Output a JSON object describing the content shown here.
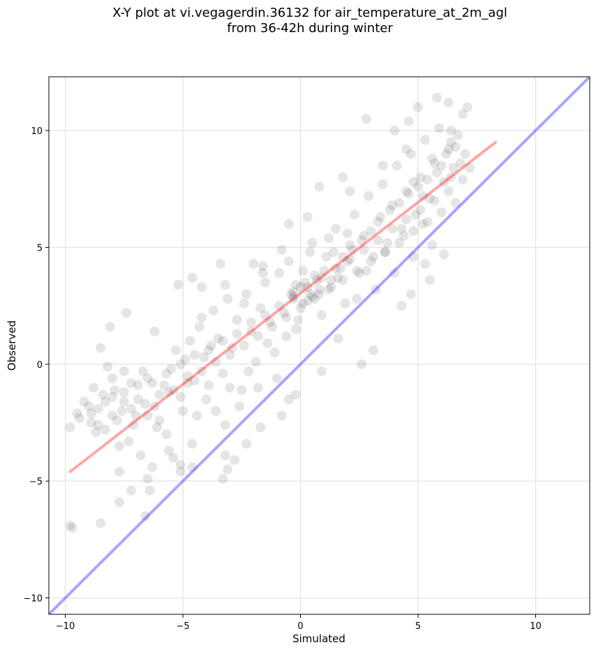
{
  "title_line1": "X-Y plot at vi.vegagerdin.36132 for air_temperature_at_2m_agl",
  "title_line2": "from 36-42h during winter",
  "chart_data": {
    "type": "scatter",
    "title": "X-Y plot at vi.vegagerdin.36132 for air_temperature_at_2m_agl\nfrom 36-42h during winter",
    "xlabel": "Simulated",
    "ylabel": "Observed",
    "xlim": [
      -10.7,
      12.3
    ],
    "ylim": [
      -10.7,
      12.3
    ],
    "xticks": [
      -10,
      -5,
      0,
      5,
      10
    ],
    "yticks": [
      -10,
      -5,
      0,
      5,
      10
    ],
    "xtick_labels": [
      "−10",
      "−5",
      "0",
      "5",
      "10"
    ],
    "ytick_labels": [
      "−10",
      "−5",
      "0",
      "5",
      "10"
    ],
    "grid": true,
    "point_color": "#000000",
    "point_opacity": 0.1,
    "regression_line": {
      "color": "#ff0000",
      "x": [
        -9.8,
        8.3
      ],
      "y": [
        -4.6,
        9.5
      ]
    },
    "identity_line": {
      "color": "#0000ff",
      "x": [
        -10.7,
        12.3
      ],
      "y": [
        -10.7,
        12.3
      ]
    },
    "points_note_count": 1500,
    "points": [
      [
        -9.8,
        -6.9
      ],
      [
        -9.7,
        -7.0
      ],
      [
        -8.5,
        -6.8
      ],
      [
        -6.6,
        -6.5
      ],
      [
        -7.7,
        -5.9
      ],
      [
        -7.2,
        -5.4
      ],
      [
        -6.4,
        -5.4
      ],
      [
        -7.7,
        -4.6
      ],
      [
        -6.5,
        -4.9
      ],
      [
        -5.1,
        -4.6
      ],
      [
        -3.3,
        -4.9
      ],
      [
        -3.1,
        -4.5
      ],
      [
        -9.8,
        -2.7
      ],
      [
        -9.4,
        -2.3
      ],
      [
        -9.0,
        -1.8
      ],
      [
        -8.6,
        -2.6
      ],
      [
        -8.4,
        -1.3
      ],
      [
        -8.0,
        -2.2
      ],
      [
        -8.1,
        1.6
      ],
      [
        -8.5,
        0.7
      ],
      [
        -8.2,
        -0.1
      ],
      [
        -7.5,
        -0.3
      ],
      [
        -6.2,
        1.4
      ],
      [
        -7.4,
        2.2
      ],
      [
        -5.2,
        3.4
      ],
      [
        -4.6,
        3.7
      ],
      [
        -4.2,
        3.3
      ],
      [
        -3.4,
        4.3
      ],
      [
        -2.0,
        4.3
      ],
      [
        -1.6,
        3.9
      ],
      [
        0.8,
        7.6
      ],
      [
        -0.5,
        6.0
      ],
      [
        0.3,
        6.3
      ],
      [
        2.8,
        10.5
      ],
      [
        4.0,
        10.0
      ],
      [
        4.6,
        10.4
      ],
      [
        5.8,
        11.4
      ],
      [
        6.3,
        11.2
      ],
      [
        7.1,
        11.0
      ],
      [
        5.0,
        11.0
      ],
      [
        4.5,
        9.2
      ],
      [
        6.9,
        10.7
      ],
      [
        6.4,
        9.5
      ],
      [
        3.5,
        8.5
      ],
      [
        2.1,
        7.4
      ],
      [
        1.8,
        8.0
      ],
      [
        -0.3,
        2.8
      ],
      [
        -0.2,
        1.5
      ],
      [
        1.6,
        1.1
      ],
      [
        2.6,
        0.0
      ],
      [
        3.1,
        0.6
      ],
      [
        4.3,
        2.5
      ],
      [
        4.7,
        3.0
      ],
      [
        5.5,
        3.6
      ],
      [
        6.1,
        4.7
      ],
      [
        5.3,
        4.3
      ],
      [
        0.9,
        -0.3
      ],
      [
        -0.5,
        -1.5
      ],
      [
        -0.8,
        -2.2
      ],
      [
        -0.2,
        -1.3
      ],
      [
        -1.7,
        -2.7
      ],
      [
        -2.3,
        -3.4
      ],
      [
        -3.2,
        -2.6
      ],
      [
        -3.2,
        -3.9
      ],
      [
        -2.8,
        -4.1
      ],
      [
        -4.6,
        -3.4
      ],
      [
        -4.6,
        -4.4
      ],
      [
        -5.1,
        -4.3
      ],
      [
        -5.4,
        -4.0
      ],
      [
        -5.7,
        -3.0
      ],
      [
        -6.1,
        -2.7
      ],
      [
        -6.5,
        -2.2
      ],
      [
        -7.1,
        -2.6
      ],
      [
        -7.3,
        -3.3
      ],
      [
        -7.7,
        -3.5
      ],
      [
        -6.8,
        -3.9
      ],
      [
        -6.3,
        -4.4
      ],
      [
        -5.6,
        -3.7
      ],
      [
        -8.8,
        -1.0
      ],
      [
        -8.9,
        -2.1
      ],
      [
        -8.3,
        -1.6
      ],
      [
        -7.9,
        -1.1
      ],
      [
        -7.6,
        -2.0
      ],
      [
        -7.2,
        -0.8
      ],
      [
        -6.9,
        -1.5
      ],
      [
        -6.5,
        -0.6
      ],
      [
        -6.2,
        -1.8
      ],
      [
        -5.8,
        -0.9
      ],
      [
        -5.5,
        -0.2
      ],
      [
        -5.3,
        0.6
      ],
      [
        -5.1,
        -1.4
      ],
      [
        -4.9,
        0.2
      ],
      [
        -4.7,
        1.0
      ],
      [
        -4.5,
        -0.7
      ],
      [
        -4.3,
        1.6
      ],
      [
        -4.1,
        0.3
      ],
      [
        -3.9,
        -0.9
      ],
      [
        -3.7,
        2.3
      ],
      [
        -3.5,
        1.1
      ],
      [
        -3.3,
        -0.4
      ],
      [
        -3.1,
        2.8
      ],
      [
        -2.9,
        0.7
      ],
      [
        -2.7,
        1.9
      ],
      [
        -2.5,
        -1.1
      ],
      [
        -2.3,
        3.0
      ],
      [
        -2.1,
        1.4
      ],
      [
        -1.9,
        0.1
      ],
      [
        -1.7,
        2.4
      ],
      [
        -1.5,
        3.5
      ],
      [
        -1.3,
        1.8
      ],
      [
        -1.1,
        0.5
      ],
      [
        -0.9,
        3.9
      ],
      [
        -0.7,
        2.2
      ],
      [
        -0.5,
        4.4
      ],
      [
        -0.3,
        3.1
      ],
      [
        -0.1,
        1.9
      ],
      [
        0.1,
        4.0
      ],
      [
        0.3,
        2.7
      ],
      [
        0.5,
        5.2
      ],
      [
        0.7,
        3.6
      ],
      [
        0.9,
        2.1
      ],
      [
        1.1,
        4.6
      ],
      [
        1.3,
        3.3
      ],
      [
        1.5,
        5.8
      ],
      [
        1.7,
        4.1
      ],
      [
        1.9,
        2.6
      ],
      [
        2.1,
        5.1
      ],
      [
        2.3,
        6.4
      ],
      [
        2.5,
        3.9
      ],
      [
        2.7,
        5.5
      ],
      [
        2.9,
        7.2
      ],
      [
        3.1,
        4.6
      ],
      [
        3.3,
        6.1
      ],
      [
        3.5,
        7.7
      ],
      [
        3.7,
        5.2
      ],
      [
        3.9,
        6.8
      ],
      [
        4.1,
        8.5
      ],
      [
        4.3,
        5.8
      ],
      [
        4.5,
        7.4
      ],
      [
        4.7,
        9.0
      ],
      [
        4.9,
        6.4
      ],
      [
        5.1,
        8.0
      ],
      [
        5.3,
        9.6
      ],
      [
        5.5,
        7.1
      ],
      [
        5.7,
        8.6
      ],
      [
        5.9,
        10.1
      ],
      [
        6.1,
        7.8
      ],
      [
        6.3,
        9.2
      ],
      [
        6.5,
        8.4
      ],
      [
        6.7,
        9.8
      ],
      [
        -8.7,
        -2.9
      ],
      [
        -8.0,
        -0.6
      ],
      [
        -7.5,
        -1.6
      ],
      [
        -7.0,
        -2.2
      ],
      [
        -6.7,
        -0.3
      ],
      [
        -6.0,
        -2.4
      ],
      [
        -5.6,
        -1.2
      ],
      [
        -5.0,
        -2.0
      ],
      [
        -4.8,
        -0.5
      ],
      [
        -4.4,
        -2.2
      ],
      [
        -4.0,
        -1.5
      ],
      [
        -3.6,
        -2.0
      ],
      [
        -3.8,
        0.8
      ],
      [
        -3.0,
        -1.0
      ],
      [
        -2.6,
        -1.8
      ],
      [
        -2.2,
        -0.3
      ],
      [
        -1.8,
        -1.0
      ],
      [
        -1.4,
        0.9
      ],
      [
        -1.0,
        -0.6
      ],
      [
        -0.6,
        1.2
      ],
      [
        -4.2,
        2.0
      ],
      [
        -3.2,
        3.4
      ],
      [
        -2.4,
        2.6
      ],
      [
        -1.6,
        4.2
      ],
      [
        -0.8,
        4.9
      ],
      [
        0.0,
        3.3
      ],
      [
        0.4,
        4.8
      ],
      [
        0.8,
        3.0
      ],
      [
        1.2,
        5.4
      ],
      [
        1.6,
        3.7
      ],
      [
        2.0,
        4.4
      ],
      [
        2.4,
        2.8
      ],
      [
        2.8,
        4.0
      ],
      [
        3.2,
        3.2
      ],
      [
        3.6,
        4.8
      ],
      [
        4.0,
        3.9
      ],
      [
        4.4,
        5.5
      ],
      [
        4.8,
        4.6
      ],
      [
        5.2,
        6.0
      ],
      [
        5.6,
        5.1
      ],
      [
        0.2,
        3.5
      ],
      [
        0.4,
        3.0
      ],
      [
        0.6,
        3.8
      ],
      [
        0.8,
        3.2
      ],
      [
        1.0,
        4.0
      ],
      [
        -0.2,
        3.4
      ],
      [
        -0.4,
        3.0
      ],
      [
        0.1,
        2.6
      ],
      [
        0.5,
        2.9
      ],
      [
        1.3,
        3.6
      ],
      [
        1.8,
        4.6
      ],
      [
        2.2,
        4.9
      ],
      [
        2.6,
        5.3
      ],
      [
        2.0,
        5.6
      ],
      [
        1.4,
        4.8
      ],
      [
        3.0,
        5.7
      ],
      [
        3.4,
        6.3
      ],
      [
        3.8,
        6.6
      ],
      [
        4.2,
        6.9
      ],
      [
        4.6,
        7.3
      ],
      [
        5.0,
        7.6
      ],
      [
        5.4,
        7.9
      ],
      [
        4.8,
        7.8
      ],
      [
        5.2,
        7.2
      ],
      [
        5.8,
        8.2
      ],
      [
        5.6,
        8.8
      ],
      [
        6.0,
        8.5
      ],
      [
        6.4,
        8.0
      ],
      [
        6.2,
        9.0
      ],
      [
        6.6,
        9.3
      ],
      [
        -9.5,
        -2.1
      ],
      [
        -9.2,
        -1.6
      ],
      [
        -8.9,
        -2.5
      ],
      [
        -8.6,
        -1.9
      ],
      [
        -8.3,
        -2.8
      ],
      [
        -8.0,
        -1.4
      ],
      [
        -7.8,
        -2.4
      ],
      [
        -7.5,
        -1.2
      ],
      [
        -7.2,
        -1.9
      ],
      [
        -6.9,
        -0.9
      ],
      [
        -6.6,
        -1.7
      ],
      [
        -6.3,
        -0.8
      ],
      [
        -6.0,
        -1.3
      ],
      [
        -5.7,
        -0.4
      ],
      [
        -5.4,
        -1.1
      ],
      [
        -5.1,
        0.0
      ],
      [
        -4.8,
        -0.8
      ],
      [
        -4.5,
        0.4
      ],
      [
        -4.2,
        -0.3
      ],
      [
        -3.9,
        0.6
      ],
      [
        -3.6,
        0.1
      ],
      [
        -3.3,
        1.0
      ],
      [
        -3.0,
        0.4
      ],
      [
        -2.7,
        1.3
      ],
      [
        -2.4,
        0.8
      ],
      [
        -2.1,
        1.8
      ],
      [
        -1.8,
        1.2
      ],
      [
        -1.5,
        2.1
      ],
      [
        -1.2,
        1.6
      ],
      [
        -0.9,
        2.5
      ],
      [
        -0.6,
        2.0
      ],
      [
        -0.3,
        2.9
      ],
      [
        0.0,
        2.4
      ],
      [
        0.3,
        3.3
      ],
      [
        0.6,
        2.8
      ],
      [
        0.9,
        3.7
      ],
      [
        1.2,
        3.2
      ],
      [
        1.5,
        4.1
      ],
      [
        1.8,
        3.6
      ],
      [
        2.1,
        4.5
      ],
      [
        2.4,
        4.0
      ],
      [
        2.7,
        4.9
      ],
      [
        3.0,
        4.4
      ],
      [
        3.3,
        5.3
      ],
      [
        3.6,
        4.8
      ],
      [
        3.9,
        5.8
      ],
      [
        4.2,
        5.2
      ],
      [
        4.5,
        6.2
      ],
      [
        4.8,
        5.7
      ],
      [
        5.1,
        6.6
      ],
      [
        5.4,
        6.1
      ],
      [
        5.7,
        7.0
      ],
      [
        6.0,
        6.5
      ],
      [
        6.3,
        7.4
      ],
      [
        6.6,
        6.9
      ],
      [
        6.9,
        7.9
      ],
      [
        7.2,
        8.4
      ],
      [
        7.0,
        9.0
      ],
      [
        6.8,
        8.6
      ],
      [
        6.4,
        10.0
      ]
    ]
  }
}
